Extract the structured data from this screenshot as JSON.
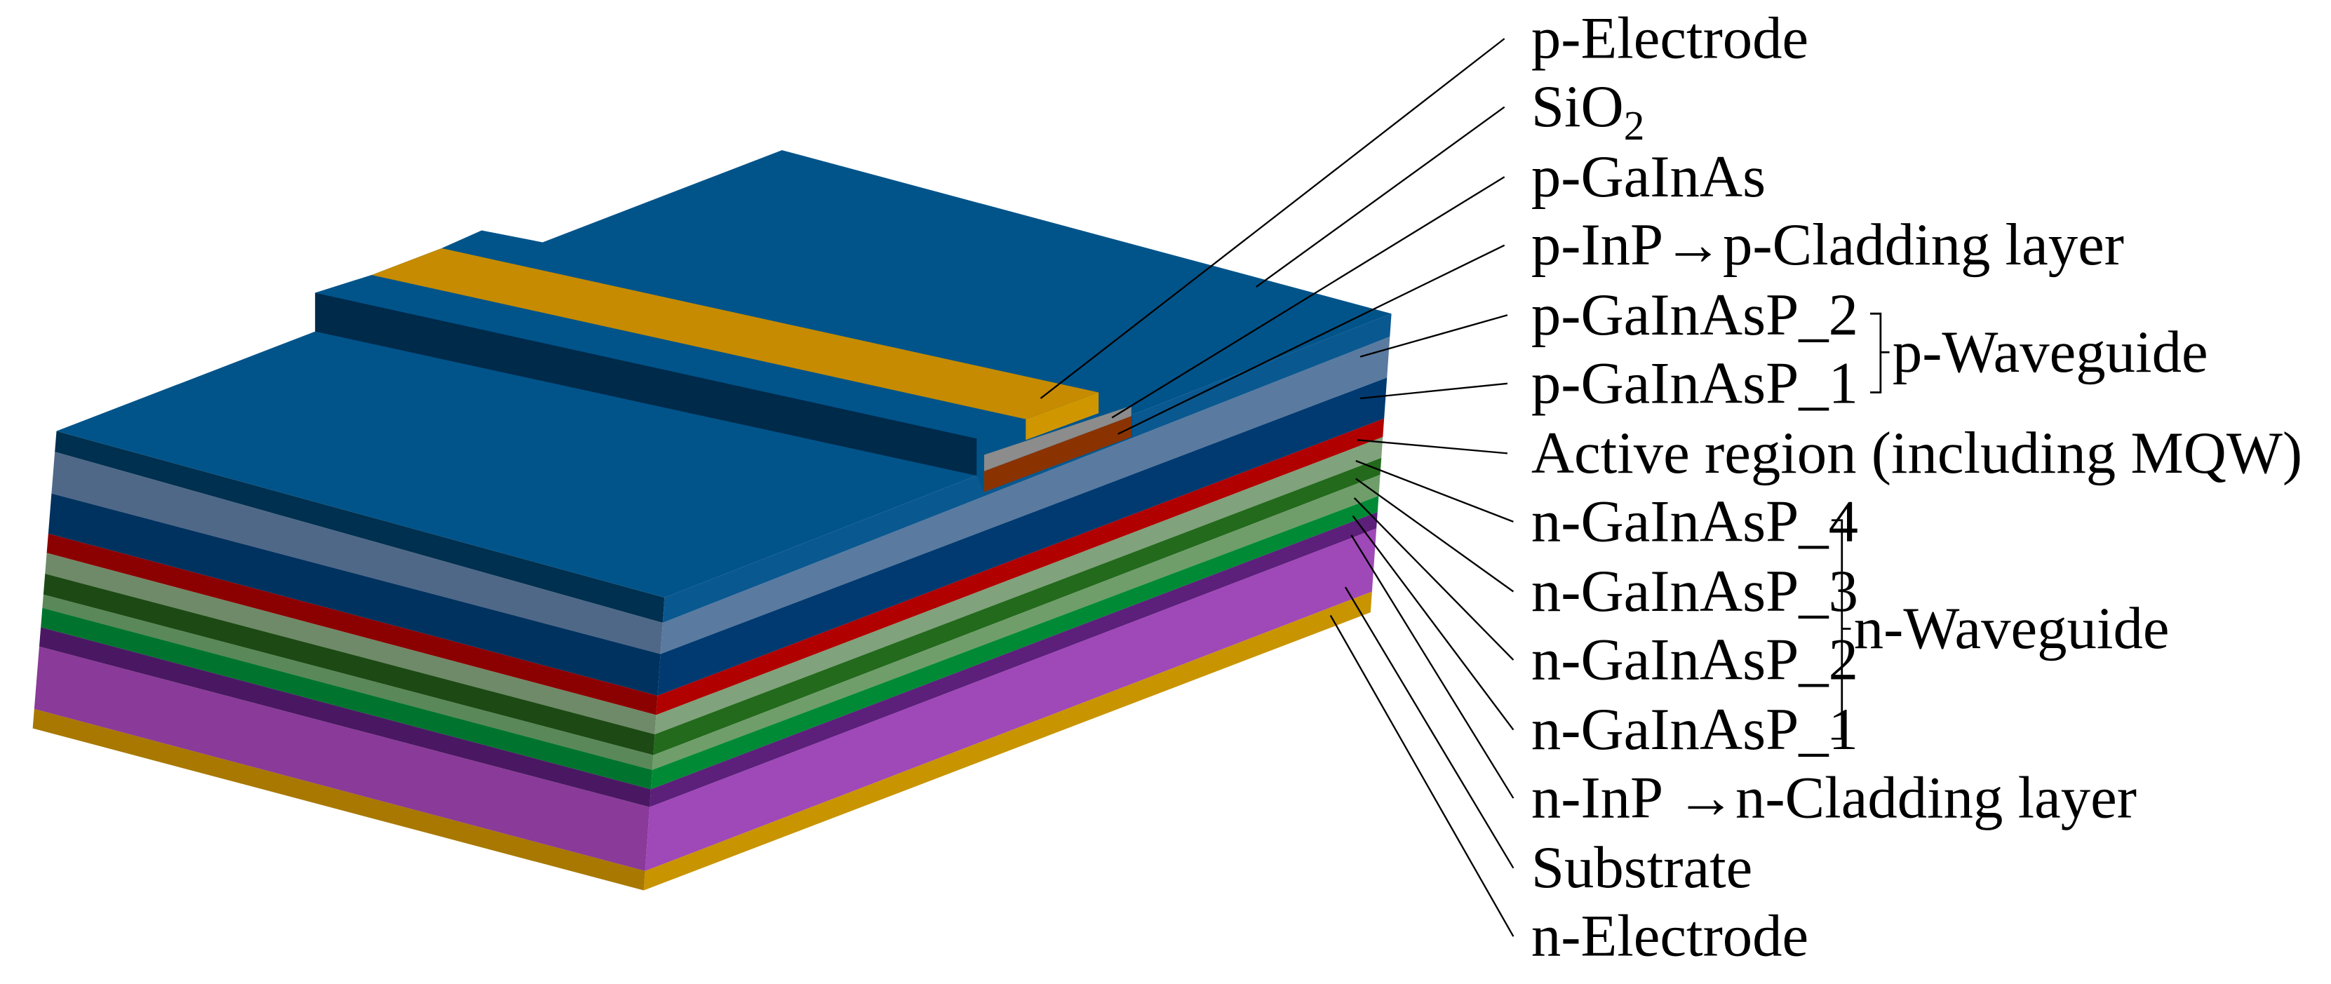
{
  "labels": {
    "p_electrode": "p-Electrode",
    "sio2": {
      "main": "SiO",
      "sub": "2"
    },
    "p_gainas": "p-GaInAs",
    "p_inp": "p-InP→p-Cladding layer",
    "p_gainasp_2": "p-GaInAsP_2",
    "p_gainasp_1": "p-GaInAsP_1",
    "active": "Active region (including MQW)",
    "n_gainasp_4": "n-GaInAsP_4",
    "n_gainasp_3": "n-GaInAsP_3",
    "n_gainasp_2": "n-GaInAsP_2",
    "n_gainasp_1": "n-GaInAsP_1",
    "n_inp": "n-InP →n-Cladding layer",
    "substrate": "Substrate",
    "n_electrode": "n-Electrode"
  },
  "groups": {
    "p_waveguide": "p-Waveguide",
    "n_waveguide": "n-Waveguide"
  },
  "colors": {
    "sio2_top": "#01548a",
    "ridge_side": "#002a4a",
    "gold_top": "#c68b00",
    "gold_end": "#d09600",
    "p_gainas": "#8c8c8c",
    "p_inp": "#8b3300",
    "layers_front": [
      "#00304f",
      "#4f6888",
      "#00325f",
      "#8b0000",
      "#6e8a68",
      "#1d4a14",
      "#5a8858",
      "#00742e",
      "#4a1862",
      "#8a3a98",
      "#a87800"
    ],
    "layers_side": [
      "#0a5890",
      "#5a7aa0",
      "#003a70",
      "#b00000",
      "#80a27c",
      "#236a1c",
      "#6f9e6a",
      "#008a36",
      "#5c1f7a",
      "#9f48b8",
      "#c89400"
    ]
  }
}
